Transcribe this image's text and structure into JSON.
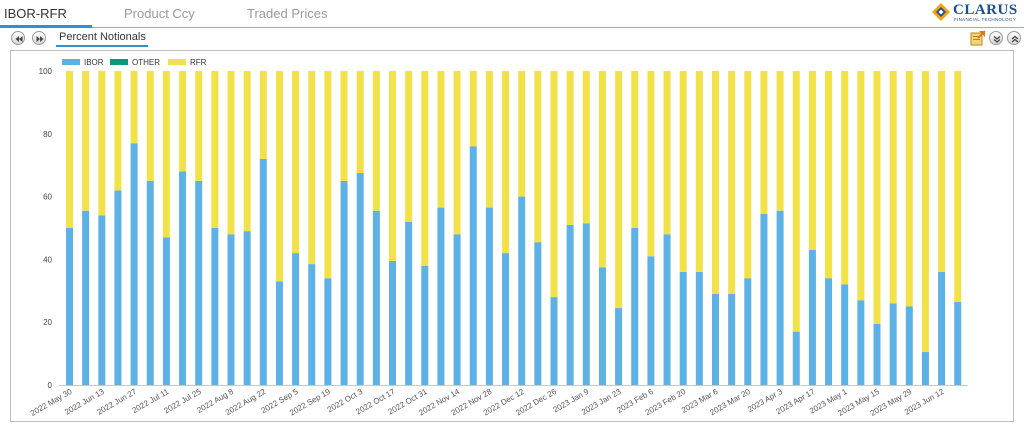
{
  "tabs": [
    {
      "label": "IBOR-RFR",
      "active": true
    },
    {
      "label": "Product Ccy",
      "active": false
    },
    {
      "label": "Traded Prices",
      "active": false
    }
  ],
  "logo": {
    "name": "CLARUS",
    "tagline": "FINANCIAL TECHNOLOGY"
  },
  "subtab": {
    "label": "Percent Notionals"
  },
  "icons": {
    "rewind": "rewind-icon",
    "forward": "fast-forward-icon",
    "export": "export-icon",
    "collapse": "chevron-down-icon",
    "expand": "chevron-up-icon"
  },
  "colors": {
    "IBOR": "#5db1e4",
    "OTHER": "#0a9a79",
    "RFR": "#f2e24a",
    "accent": "#2f8fd0"
  },
  "chart_data": {
    "type": "bar",
    "stacked": true,
    "title": "",
    "xlabel": "",
    "ylabel": "",
    "ylim": [
      0,
      100
    ],
    "yticks": [
      0,
      20,
      40,
      60,
      80,
      100
    ],
    "grid": false,
    "legend_position": "top-left",
    "legend": [
      "IBOR",
      "OTHER",
      "RFR"
    ],
    "x_tick_labels": [
      {
        "index": 0,
        "label": "2022 May 30"
      },
      {
        "index": 2,
        "label": "2022 Jun 13"
      },
      {
        "index": 4,
        "label": "2022 Jun 27"
      },
      {
        "index": 6,
        "label": "2022 Jul 11"
      },
      {
        "index": 8,
        "label": "2022 Jul 25"
      },
      {
        "index": 10,
        "label": "2022 Aug 8"
      },
      {
        "index": 12,
        "label": "2022 Aug 22"
      },
      {
        "index": 14,
        "label": "2022 Sep 5"
      },
      {
        "index": 16,
        "label": "2022 Sep 19"
      },
      {
        "index": 18,
        "label": "2022 Oct 3"
      },
      {
        "index": 20,
        "label": "2022 Oct 17"
      },
      {
        "index": 22,
        "label": "2022 Oct 31"
      },
      {
        "index": 24,
        "label": "2022 Nov 14"
      },
      {
        "index": 26,
        "label": "2022 Nov 28"
      },
      {
        "index": 28,
        "label": "2022 Dec 12"
      },
      {
        "index": 30,
        "label": "2022 Dec 26"
      },
      {
        "index": 32,
        "label": "2023 Jan 9"
      },
      {
        "index": 34,
        "label": "2023 Jan 23"
      },
      {
        "index": 36,
        "label": "2023 Feb 6"
      },
      {
        "index": 38,
        "label": "2023 Feb 20"
      },
      {
        "index": 40,
        "label": "2023 Mar 6"
      },
      {
        "index": 42,
        "label": "2023 Mar 20"
      },
      {
        "index": 44,
        "label": "2023 Apr 3"
      },
      {
        "index": 46,
        "label": "2023 Apr 17"
      },
      {
        "index": 48,
        "label": "2023 May 1"
      },
      {
        "index": 50,
        "label": "2023 May 15"
      },
      {
        "index": 52,
        "label": "2023 May 29"
      },
      {
        "index": 54,
        "label": "2023 Jun 12"
      }
    ],
    "series": [
      {
        "name": "IBOR",
        "values": [
          50,
          55.5,
          54,
          62,
          77,
          65,
          47,
          68,
          65,
          50,
          48,
          49,
          72,
          33,
          42,
          38.5,
          34,
          65,
          67.5,
          55.5,
          39.5,
          52,
          38,
          56.5,
          48,
          76,
          56.5,
          42,
          60,
          45.5,
          28,
          51,
          51.5,
          37.5,
          24.5,
          50,
          41,
          48,
          36,
          36,
          29,
          29,
          34,
          54.5,
          55.5,
          17,
          43,
          34,
          32,
          27,
          19.5,
          26,
          25,
          10.5,
          36,
          26.5
        ]
      },
      {
        "name": "OTHER",
        "values": [
          0,
          0,
          0,
          0,
          0,
          0,
          0,
          0,
          0,
          0,
          0,
          0,
          0,
          0,
          0,
          0,
          0,
          0,
          0,
          0,
          0,
          0,
          0,
          0,
          0,
          0,
          0,
          0,
          0,
          0,
          0,
          0,
          0,
          0,
          0,
          0,
          0,
          0,
          0,
          0,
          0,
          0,
          0,
          0,
          0,
          0,
          0,
          0,
          0,
          0,
          0,
          0,
          0,
          0,
          0,
          0
        ]
      },
      {
        "name": "RFR",
        "values": [
          50,
          44.5,
          46,
          38,
          23,
          35,
          53,
          32,
          35,
          50,
          52,
          51,
          28,
          67,
          58,
          61.5,
          66,
          35,
          32.5,
          44.5,
          60.5,
          48,
          62,
          43.5,
          52,
          24,
          43.5,
          58,
          40,
          54.5,
          72,
          49,
          48.5,
          62.5,
          75.5,
          50,
          59,
          52,
          64,
          64,
          71,
          71,
          66,
          45.5,
          44.5,
          83,
          57,
          66,
          68,
          73,
          80.5,
          74,
          75,
          89.5,
          64,
          73.5
        ]
      }
    ]
  }
}
